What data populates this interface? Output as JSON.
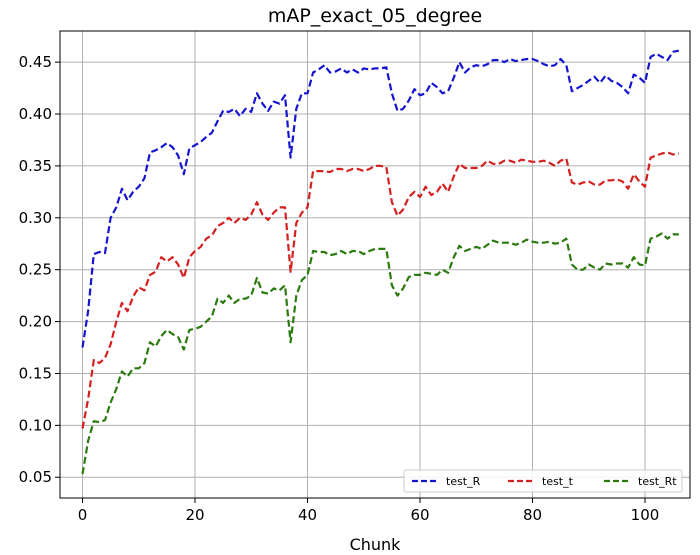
{
  "chart_data": {
    "type": "line",
    "title": "mAP_exact_05_degree",
    "xlabel": "Chunk",
    "ylabel": "",
    "xlim": [
      -4,
      108
    ],
    "ylim": [
      0.03,
      0.48
    ],
    "x_ticks": [
      0,
      20,
      40,
      60,
      80,
      100
    ],
    "y_ticks": [
      0.05,
      0.1,
      0.15,
      0.2,
      0.25,
      0.3,
      0.35,
      0.4,
      0.45
    ],
    "grid": true,
    "legend_position": "lower-right",
    "series": [
      {
        "name": "test_R",
        "color": "#1515d0",
        "points": [
          [
            0,
            0.175
          ],
          [
            1,
            0.21
          ],
          [
            2,
            0.265
          ],
          [
            3,
            0.267
          ],
          [
            4,
            0.266
          ],
          [
            5,
            0.3
          ],
          [
            6,
            0.31
          ],
          [
            7,
            0.328
          ],
          [
            8,
            0.317
          ],
          [
            9,
            0.325
          ],
          [
            10,
            0.33
          ],
          [
            11,
            0.338
          ],
          [
            12,
            0.363
          ],
          [
            13,
            0.365
          ],
          [
            14,
            0.368
          ],
          [
            15,
            0.372
          ],
          [
            16,
            0.368
          ],
          [
            17,
            0.36
          ],
          [
            18,
            0.342
          ],
          [
            19,
            0.367
          ],
          [
            20,
            0.37
          ],
          [
            21,
            0.373
          ],
          [
            22,
            0.378
          ],
          [
            23,
            0.382
          ],
          [
            24,
            0.393
          ],
          [
            25,
            0.403
          ],
          [
            26,
            0.402
          ],
          [
            27,
            0.405
          ],
          [
            28,
            0.398
          ],
          [
            29,
            0.405
          ],
          [
            30,
            0.402
          ],
          [
            31,
            0.42
          ],
          [
            32,
            0.41
          ],
          [
            33,
            0.403
          ],
          [
            34,
            0.412
          ],
          [
            35,
            0.41
          ],
          [
            36,
            0.418
          ],
          [
            37,
            0.358
          ],
          [
            38,
            0.405
          ],
          [
            39,
            0.42
          ],
          [
            40,
            0.42
          ],
          [
            41,
            0.44
          ],
          [
            42,
            0.443
          ],
          [
            43,
            0.447
          ],
          [
            44,
            0.44
          ],
          [
            45,
            0.441
          ],
          [
            46,
            0.444
          ],
          [
            47,
            0.44
          ],
          [
            48,
            0.443
          ],
          [
            49,
            0.44
          ],
          [
            50,
            0.444
          ],
          [
            51,
            0.443
          ],
          [
            52,
            0.444
          ],
          [
            53,
            0.444
          ],
          [
            54,
            0.445
          ],
          [
            55,
            0.42
          ],
          [
            56,
            0.403
          ],
          [
            57,
            0.405
          ],
          [
            58,
            0.413
          ],
          [
            59,
            0.424
          ],
          [
            60,
            0.418
          ],
          [
            61,
            0.42
          ],
          [
            62,
            0.43
          ],
          [
            63,
            0.426
          ],
          [
            64,
            0.42
          ],
          [
            65,
            0.422
          ],
          [
            66,
            0.435
          ],
          [
            67,
            0.45
          ],
          [
            68,
            0.44
          ],
          [
            69,
            0.445
          ],
          [
            70,
            0.447
          ],
          [
            71,
            0.446
          ],
          [
            72,
            0.448
          ],
          [
            73,
            0.452
          ],
          [
            74,
            0.452
          ],
          [
            75,
            0.45
          ],
          [
            76,
            0.453
          ],
          [
            77,
            0.451
          ],
          [
            78,
            0.452
          ],
          [
            79,
            0.453
          ],
          [
            80,
            0.453
          ],
          [
            81,
            0.451
          ],
          [
            82,
            0.448
          ],
          [
            83,
            0.446
          ],
          [
            84,
            0.447
          ],
          [
            85,
            0.453
          ],
          [
            86,
            0.447
          ],
          [
            87,
            0.422
          ],
          [
            88,
            0.425
          ],
          [
            89,
            0.428
          ],
          [
            90,
            0.432
          ],
          [
            91,
            0.436
          ],
          [
            92,
            0.43
          ],
          [
            93,
            0.437
          ],
          [
            94,
            0.432
          ],
          [
            95,
            0.43
          ],
          [
            96,
            0.426
          ],
          [
            97,
            0.42
          ],
          [
            98,
            0.438
          ],
          [
            99,
            0.435
          ],
          [
            100,
            0.43
          ],
          [
            101,
            0.455
          ],
          [
            102,
            0.458
          ],
          [
            103,
            0.455
          ],
          [
            104,
            0.452
          ],
          [
            105,
            0.46
          ],
          [
            106,
            0.461
          ]
        ]
      },
      {
        "name": "test_t",
        "color": "#d42020",
        "points": [
          [
            0,
            0.097
          ],
          [
            1,
            0.125
          ],
          [
            2,
            0.163
          ],
          [
            3,
            0.16
          ],
          [
            4,
            0.165
          ],
          [
            5,
            0.178
          ],
          [
            6,
            0.2
          ],
          [
            7,
            0.218
          ],
          [
            8,
            0.21
          ],
          [
            9,
            0.224
          ],
          [
            10,
            0.233
          ],
          [
            11,
            0.23
          ],
          [
            12,
            0.245
          ],
          [
            13,
            0.248
          ],
          [
            14,
            0.262
          ],
          [
            15,
            0.258
          ],
          [
            16,
            0.262
          ],
          [
            17,
            0.255
          ],
          [
            18,
            0.242
          ],
          [
            19,
            0.262
          ],
          [
            20,
            0.268
          ],
          [
            21,
            0.272
          ],
          [
            22,
            0.28
          ],
          [
            23,
            0.283
          ],
          [
            24,
            0.292
          ],
          [
            25,
            0.295
          ],
          [
            26,
            0.3
          ],
          [
            27,
            0.295
          ],
          [
            28,
            0.3
          ],
          [
            29,
            0.298
          ],
          [
            30,
            0.303
          ],
          [
            31,
            0.315
          ],
          [
            32,
            0.303
          ],
          [
            33,
            0.298
          ],
          [
            34,
            0.305
          ],
          [
            35,
            0.31
          ],
          [
            36,
            0.31
          ],
          [
            37,
            0.248
          ],
          [
            38,
            0.295
          ],
          [
            39,
            0.305
          ],
          [
            40,
            0.31
          ],
          [
            41,
            0.345
          ],
          [
            42,
            0.345
          ],
          [
            43,
            0.345
          ],
          [
            44,
            0.344
          ],
          [
            45,
            0.347
          ],
          [
            46,
            0.347
          ],
          [
            47,
            0.345
          ],
          [
            48,
            0.347
          ],
          [
            49,
            0.347
          ],
          [
            50,
            0.345
          ],
          [
            51,
            0.347
          ],
          [
            52,
            0.35
          ],
          [
            53,
            0.35
          ],
          [
            54,
            0.349
          ],
          [
            55,
            0.315
          ],
          [
            56,
            0.302
          ],
          [
            57,
            0.308
          ],
          [
            58,
            0.32
          ],
          [
            59,
            0.325
          ],
          [
            60,
            0.32
          ],
          [
            61,
            0.33
          ],
          [
            62,
            0.322
          ],
          [
            63,
            0.325
          ],
          [
            64,
            0.333
          ],
          [
            65,
            0.325
          ],
          [
            66,
            0.34
          ],
          [
            67,
            0.352
          ],
          [
            68,
            0.348
          ],
          [
            69,
            0.348
          ],
          [
            70,
            0.348
          ],
          [
            71,
            0.35
          ],
          [
            72,
            0.355
          ],
          [
            73,
            0.352
          ],
          [
            74,
            0.352
          ],
          [
            75,
            0.355
          ],
          [
            76,
            0.355
          ],
          [
            77,
            0.353
          ],
          [
            78,
            0.356
          ],
          [
            79,
            0.355
          ],
          [
            80,
            0.354
          ],
          [
            81,
            0.354
          ],
          [
            82,
            0.355
          ],
          [
            83,
            0.353
          ],
          [
            84,
            0.35
          ],
          [
            85,
            0.355
          ],
          [
            86,
            0.357
          ],
          [
            87,
            0.334
          ],
          [
            88,
            0.332
          ],
          [
            89,
            0.334
          ],
          [
            90,
            0.335
          ],
          [
            91,
            0.332
          ],
          [
            92,
            0.332
          ],
          [
            93,
            0.336
          ],
          [
            94,
            0.336
          ],
          [
            95,
            0.337
          ],
          [
            96,
            0.335
          ],
          [
            97,
            0.328
          ],
          [
            98,
            0.342
          ],
          [
            99,
            0.335
          ],
          [
            100,
            0.33
          ],
          [
            101,
            0.358
          ],
          [
            102,
            0.36
          ],
          [
            103,
            0.362
          ],
          [
            104,
            0.363
          ],
          [
            105,
            0.361
          ],
          [
            106,
            0.362
          ]
        ]
      },
      {
        "name": "test_Rt",
        "color": "#2a7a10",
        "points": [
          [
            0,
            0.053
          ],
          [
            1,
            0.085
          ],
          [
            2,
            0.104
          ],
          [
            3,
            0.103
          ],
          [
            4,
            0.105
          ],
          [
            5,
            0.122
          ],
          [
            6,
            0.135
          ],
          [
            7,
            0.152
          ],
          [
            8,
            0.147
          ],
          [
            9,
            0.155
          ],
          [
            10,
            0.155
          ],
          [
            11,
            0.16
          ],
          [
            12,
            0.18
          ],
          [
            13,
            0.176
          ],
          [
            14,
            0.186
          ],
          [
            15,
            0.192
          ],
          [
            16,
            0.188
          ],
          [
            17,
            0.185
          ],
          [
            18,
            0.173
          ],
          [
            19,
            0.192
          ],
          [
            20,
            0.193
          ],
          [
            21,
            0.195
          ],
          [
            22,
            0.2
          ],
          [
            23,
            0.205
          ],
          [
            24,
            0.222
          ],
          [
            25,
            0.218
          ],
          [
            26,
            0.225
          ],
          [
            27,
            0.218
          ],
          [
            28,
            0.222
          ],
          [
            29,
            0.222
          ],
          [
            30,
            0.225
          ],
          [
            31,
            0.242
          ],
          [
            32,
            0.228
          ],
          [
            33,
            0.227
          ],
          [
            34,
            0.232
          ],
          [
            35,
            0.23
          ],
          [
            36,
            0.235
          ],
          [
            37,
            0.18
          ],
          [
            38,
            0.225
          ],
          [
            39,
            0.24
          ],
          [
            40,
            0.245
          ],
          [
            41,
            0.268
          ],
          [
            42,
            0.267
          ],
          [
            43,
            0.267
          ],
          [
            44,
            0.264
          ],
          [
            45,
            0.265
          ],
          [
            46,
            0.268
          ],
          [
            47,
            0.265
          ],
          [
            48,
            0.268
          ],
          [
            49,
            0.268
          ],
          [
            50,
            0.265
          ],
          [
            51,
            0.268
          ],
          [
            52,
            0.27
          ],
          [
            53,
            0.27
          ],
          [
            54,
            0.27
          ],
          [
            55,
            0.235
          ],
          [
            56,
            0.225
          ],
          [
            57,
            0.232
          ],
          [
            58,
            0.243
          ],
          [
            59,
            0.245
          ],
          [
            60,
            0.245
          ],
          [
            61,
            0.247
          ],
          [
            62,
            0.246
          ],
          [
            63,
            0.245
          ],
          [
            64,
            0.25
          ],
          [
            65,
            0.247
          ],
          [
            66,
            0.262
          ],
          [
            67,
            0.273
          ],
          [
            68,
            0.268
          ],
          [
            69,
            0.27
          ],
          [
            70,
            0.272
          ],
          [
            71,
            0.27
          ],
          [
            72,
            0.274
          ],
          [
            73,
            0.278
          ],
          [
            74,
            0.276
          ],
          [
            75,
            0.276
          ],
          [
            76,
            0.276
          ],
          [
            77,
            0.274
          ],
          [
            78,
            0.276
          ],
          [
            79,
            0.279
          ],
          [
            80,
            0.277
          ],
          [
            81,
            0.276
          ],
          [
            82,
            0.276
          ],
          [
            83,
            0.277
          ],
          [
            84,
            0.275
          ],
          [
            85,
            0.276
          ],
          [
            86,
            0.28
          ],
          [
            87,
            0.255
          ],
          [
            88,
            0.25
          ],
          [
            89,
            0.25
          ],
          [
            90,
            0.255
          ],
          [
            91,
            0.252
          ],
          [
            92,
            0.25
          ],
          [
            93,
            0.256
          ],
          [
            94,
            0.255
          ],
          [
            95,
            0.256
          ],
          [
            96,
            0.256
          ],
          [
            97,
            0.252
          ],
          [
            98,
            0.262
          ],
          [
            99,
            0.255
          ],
          [
            100,
            0.254
          ],
          [
            101,
            0.28
          ],
          [
            102,
            0.282
          ],
          [
            103,
            0.285
          ],
          [
            104,
            0.28
          ],
          [
            105,
            0.284
          ],
          [
            106,
            0.284
          ]
        ]
      }
    ]
  }
}
